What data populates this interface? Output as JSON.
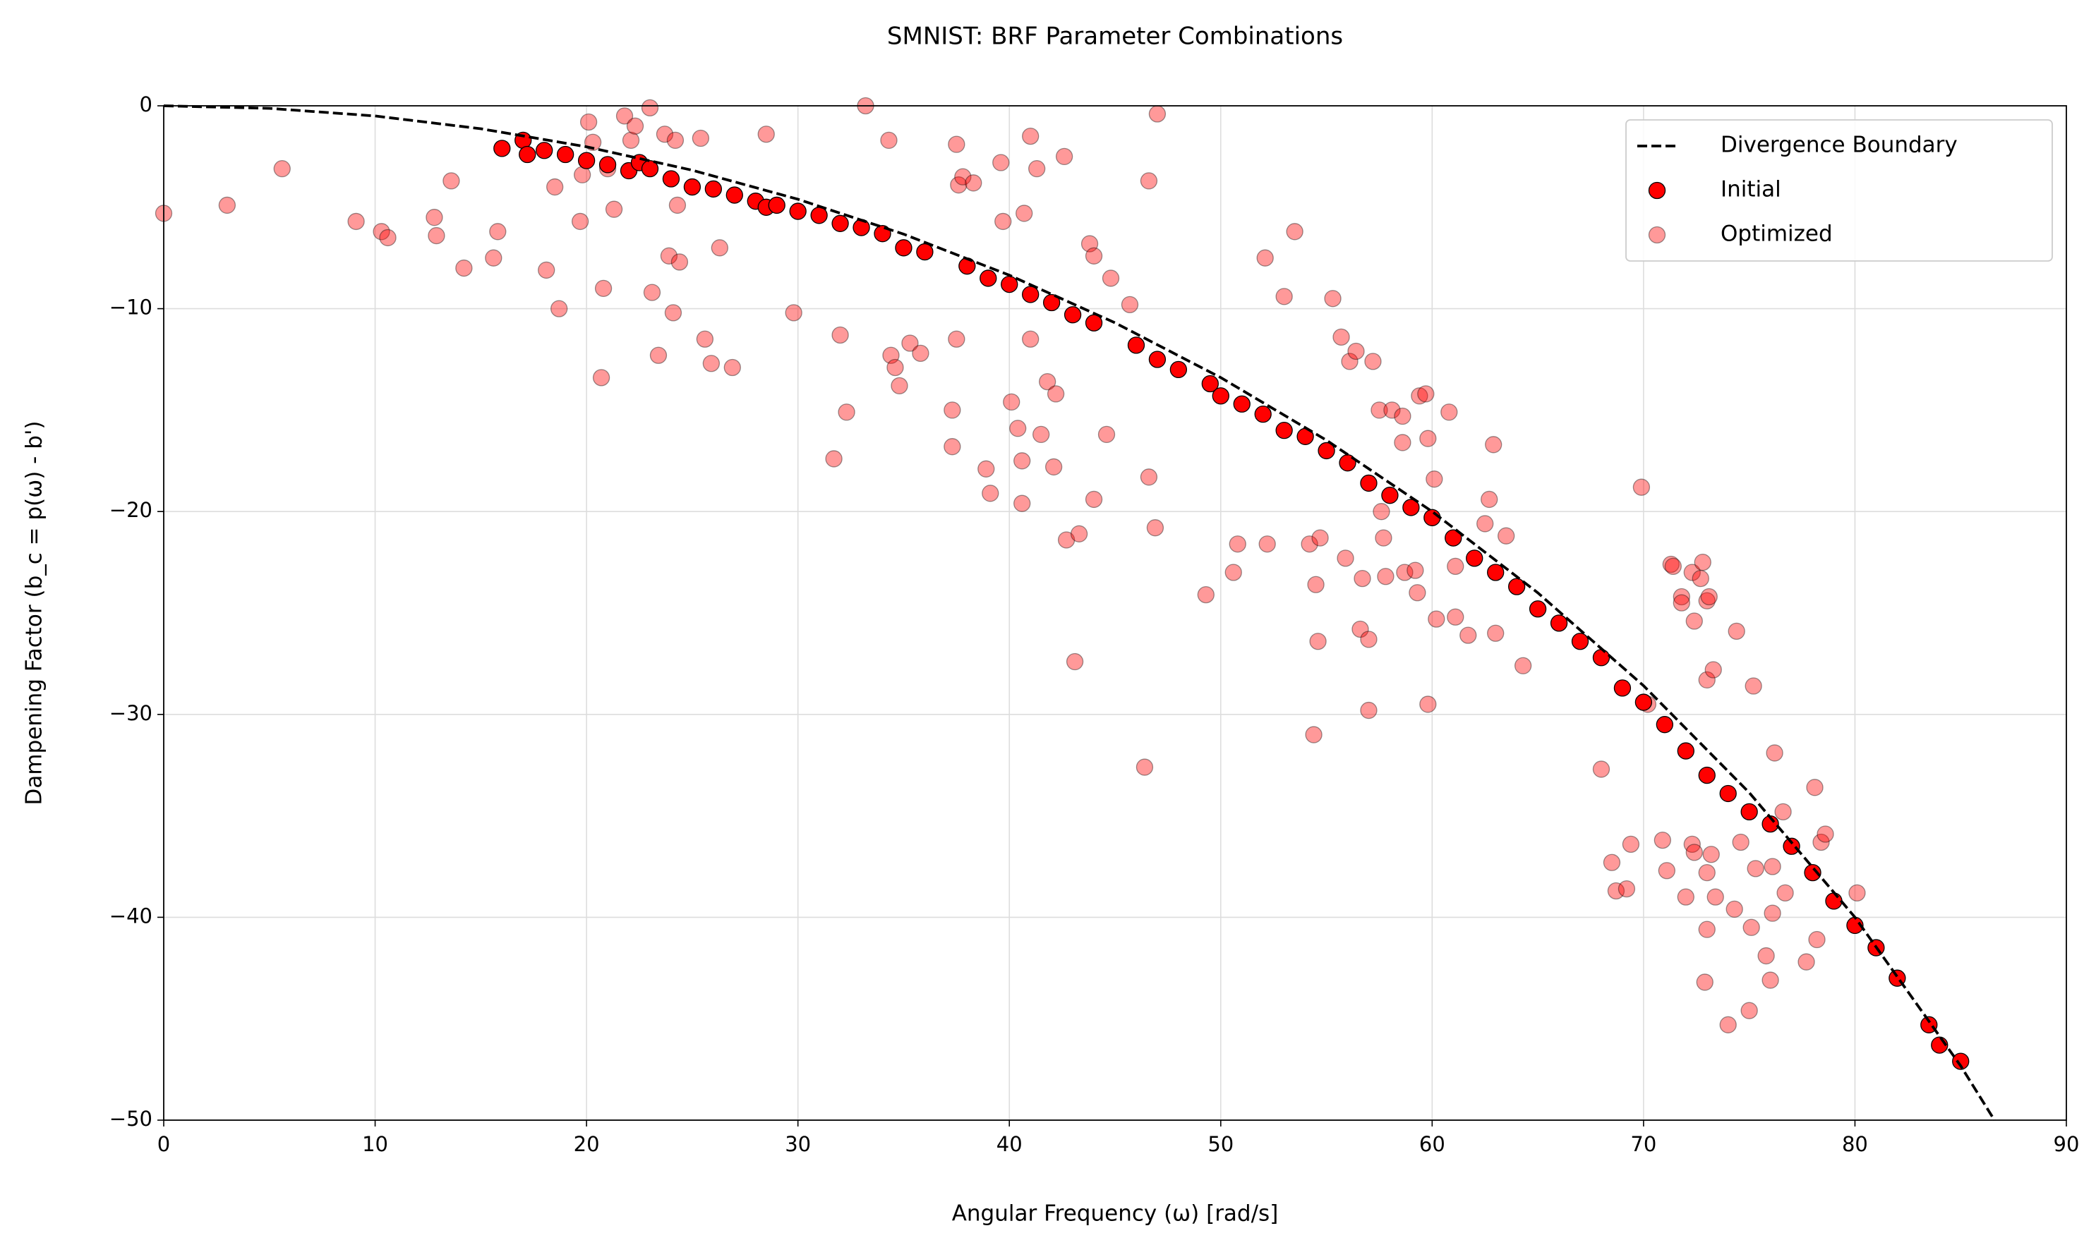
{
  "chart_data": {
    "type": "scatter",
    "title": "SMNIST: BRF Parameter Combinations",
    "x_label": "Angular Frequency (ω) [rad/s]",
    "y_label": "Dampening Factor (b_c = p(ω) - b')",
    "xlim": [
      0,
      90
    ],
    "ylim": [
      -50,
      0
    ],
    "xticks": [
      0,
      10,
      20,
      30,
      40,
      50,
      60,
      70,
      80,
      90
    ],
    "yticks": [
      {
        "value": -50,
        "label": "−50"
      },
      {
        "value": -40,
        "label": "−40"
      },
      {
        "value": -30,
        "label": "−30"
      },
      {
        "value": -20,
        "label": "−20"
      },
      {
        "value": -10,
        "label": "−10"
      },
      0
    ],
    "grid": true,
    "legend": "upper right",
    "series": [
      {
        "name": "Divergence Boundary",
        "type": "line",
        "linestyle": "dashed",
        "color": "#000000",
        "x": [
          0,
          5,
          10,
          15,
          20,
          25,
          30,
          35,
          40,
          45,
          50,
          55,
          60,
          65,
          70,
          75,
          80,
          85,
          86.6
        ],
        "values": [
          0,
          -0.125,
          -0.501,
          -1.131,
          -2.02,
          -3.175,
          -4.606,
          -6.325,
          -8.349,
          -10.697,
          -13.397,
          -16.484,
          -20,
          -24.007,
          -28.586,
          -33.856,
          -40,
          -47.322,
          -50
        ]
      },
      {
        "name": "Initial",
        "type": "scatter",
        "color": "#ff0000",
        "edgecolor": "#000000",
        "alpha": 1,
        "x": [
          16,
          17,
          17.2,
          18,
          19,
          20,
          21,
          22,
          22.5,
          23,
          24,
          25,
          26,
          27,
          28,
          28.5,
          29,
          30,
          31,
          32,
          33,
          34,
          35,
          36,
          38,
          39,
          40,
          41,
          42,
          43,
          44,
          46,
          47,
          48,
          49.5,
          50,
          51,
          52,
          53,
          54,
          55,
          56,
          57,
          58,
          59,
          60,
          61,
          62,
          63,
          64,
          65,
          66,
          67,
          68,
          69,
          70,
          71,
          72,
          73,
          74,
          75,
          76,
          77,
          78,
          79,
          80,
          81,
          82,
          83.5,
          84,
          85
        ],
        "values": [
          -2.1,
          -1.7,
          -2.4,
          -2.2,
          -2.4,
          -2.7,
          -2.9,
          -3.2,
          -2.8,
          -3.1,
          -3.6,
          -4.0,
          -4.1,
          -4.4,
          -4.7,
          -5.0,
          -4.9,
          -5.2,
          -5.4,
          -5.8,
          -6.0,
          -6.3,
          -7.0,
          -7.2,
          -7.9,
          -8.5,
          -8.8,
          -9.3,
          -9.7,
          -10.3,
          -10.7,
          -11.8,
          -12.5,
          -13.0,
          -13.7,
          -14.3,
          -14.7,
          -15.2,
          -16.0,
          -16.3,
          -17.0,
          -17.6,
          -18.6,
          -19.2,
          -19.8,
          -20.3,
          -21.3,
          -22.3,
          -23.0,
          -23.7,
          -24.8,
          -25.5,
          -26.4,
          -27.2,
          -28.7,
          -29.4,
          -30.5,
          -31.8,
          -33.0,
          -33.9,
          -34.8,
          -35.4,
          -36.5,
          -37.8,
          -39.2,
          -40.4,
          -41.5,
          -43.0,
          -45.3,
          -46.3,
          -47.1
        ]
      },
      {
        "name": "Optimized",
        "type": "scatter",
        "color": "#ff0000",
        "edgecolor": "#000000",
        "alpha": 0.4,
        "x": [
          0,
          3,
          5.6,
          9.1,
          10.3,
          10.6,
          12.8,
          12.9,
          13.6,
          14.2,
          15.6,
          15.8,
          18.1,
          18.5,
          18.7,
          19.7,
          19.8,
          20.1,
          20.3,
          20.8,
          20.7,
          21.0,
          21.3,
          21.8,
          22.1,
          22.3,
          23,
          23.1,
          23.4,
          23.7,
          23.9,
          24.1,
          24.2,
          24.3,
          24.4,
          25.4,
          25.6,
          25.9,
          26.3,
          26.9,
          28.5,
          29.8,
          31.7,
          32,
          32.3,
          33.2,
          34.3,
          34.4,
          34.6,
          34.8,
          35.3,
          35.8,
          37.3,
          37.3,
          37.5,
          37.5,
          37.6,
          37.8,
          38.3,
          38.9,
          39.1,
          39.6,
          39.7,
          40.1,
          40.4,
          40.6,
          40.6,
          40.7,
          41.0,
          41.0,
          41.3,
          41.5,
          41.8,
          42.1,
          42.2,
          42.6,
          42.7,
          43.1,
          43.3,
          43.8,
          44.0,
          44.0,
          44.6,
          44.8,
          45.7,
          46.4,
          46.6,
          46.6,
          46.9,
          47.0,
          49.3,
          50.6,
          50.8,
          52.1,
          52.2,
          53.0,
          53.5,
          54.2,
          54.4,
          54.5,
          54.6,
          54.7,
          55.3,
          55.7,
          55.9,
          56.1,
          56.4,
          56.6,
          56.7,
          57.0,
          57.0,
          57.2,
          57.5,
          57.6,
          57.7,
          57.8,
          58.1,
          58.6,
          58.6,
          58.7,
          59.2,
          59.3,
          59.4,
          59.7,
          59.8,
          59.8,
          60.1,
          60.2,
          60.8,
          61.0,
          61.1,
          61.1,
          61.7,
          62.5,
          62.7,
          62.9,
          63.0,
          63.5,
          64.3,
          68.0,
          68.5,
          68.7,
          69.2,
          69.4,
          69.9,
          70.2,
          70.9,
          71.1,
          71.3,
          71.4,
          71.8,
          71.8,
          72.0,
          72.3,
          72.3,
          72.4,
          72.4,
          72.7,
          72.8,
          72.9,
          73.0,
          73.0,
          73.0,
          73.0,
          73.1,
          73.2,
          73.3,
          73.4,
          74.0,
          74.3,
          74.4,
          74.6,
          75.0,
          75.1,
          75.2,
          75.3,
          75.8,
          76.0,
          76.1,
          76.1,
          76.2,
          76.6,
          76.7,
          77.7,
          78.1,
          78.2,
          78.4,
          78.6,
          80.1
        ],
        "values": [
          -5.3,
          -4.9,
          -3.1,
          -5.7,
          -6.2,
          -6.5,
          -5.5,
          -6.4,
          -3.7,
          -8.0,
          -7.5,
          -6.2,
          -8.1,
          -4.0,
          -10.0,
          -5.7,
          -3.4,
          -0.8,
          -1.8,
          -9.0,
          -13.4,
          -3.1,
          -5.1,
          -0.5,
          -1.7,
          -1.0,
          -0.1,
          -9.2,
          -12.3,
          -1.4,
          -7.4,
          -10.2,
          -1.7,
          -4.9,
          -7.7,
          -1.6,
          -11.5,
          -12.7,
          -7.0,
          -12.9,
          -1.4,
          -10.2,
          -17.4,
          -11.3,
          -15.1,
          0,
          -1.7,
          -12.3,
          -12.9,
          -13.8,
          -11.7,
          -12.2,
          -15.0,
          -16.8,
          -1.9,
          -11.5,
          -3.9,
          -3.5,
          -3.8,
          -17.9,
          -19.1,
          -2.8,
          -5.7,
          -14.6,
          -15.9,
          -17.5,
          -19.6,
          -5.3,
          -1.5,
          -11.5,
          -3.1,
          -16.2,
          -13.6,
          -17.8,
          -14.2,
          -2.5,
          -21.4,
          -27.4,
          -21.1,
          -6.8,
          -7.4,
          -19.4,
          -16.2,
          -8.5,
          -9.8,
          -32.6,
          -18.3,
          -3.7,
          -20.8,
          -0.4,
          -24.1,
          -23.0,
          -21.6,
          -7.5,
          -21.6,
          -9.4,
          -6.2,
          -21.6,
          -31.0,
          -23.6,
          -26.4,
          -21.3,
          -9.5,
          -11.4,
          -22.3,
          -12.6,
          -12.1,
          -25.8,
          -23.3,
          -26.3,
          -29.8,
          -12.6,
          -15.0,
          -20.0,
          -21.3,
          -23.2,
          -15.0,
          -15.3,
          -16.6,
          -23.0,
          -22.9,
          -24.0,
          -14.3,
          -14.2,
          -16.4,
          -29.5,
          -18.4,
          -25.3,
          -15.1,
          -21.3,
          -25.2,
          -22.7,
          -26.1,
          -20.6,
          -19.4,
          -16.7,
          -26.0,
          -21.2,
          -27.6,
          -32.7,
          -37.3,
          -38.7,
          -38.6,
          -36.4,
          -18.8,
          -29.5,
          -36.2,
          -37.7,
          -22.6,
          -22.7,
          -24.2,
          -24.5,
          -39.0,
          -23.0,
          -36.4,
          -36.8,
          -25.4,
          -23.3,
          -22.5,
          -43.2,
          -40.6,
          -37.8,
          -28.3,
          -24.4,
          -24.2,
          -36.9,
          -27.8,
          -39.0,
          -45.3,
          -39.6,
          -25.9,
          -36.3,
          -44.6,
          -40.5,
          -28.6,
          -37.6,
          -41.9,
          -43.1,
          -37.5,
          -39.8,
          -31.9,
          -34.8,
          -38.8,
          -42.2,
          -33.6,
          -41.1,
          -36.3,
          -35.9,
          -38.8
        ]
      }
    ]
  }
}
